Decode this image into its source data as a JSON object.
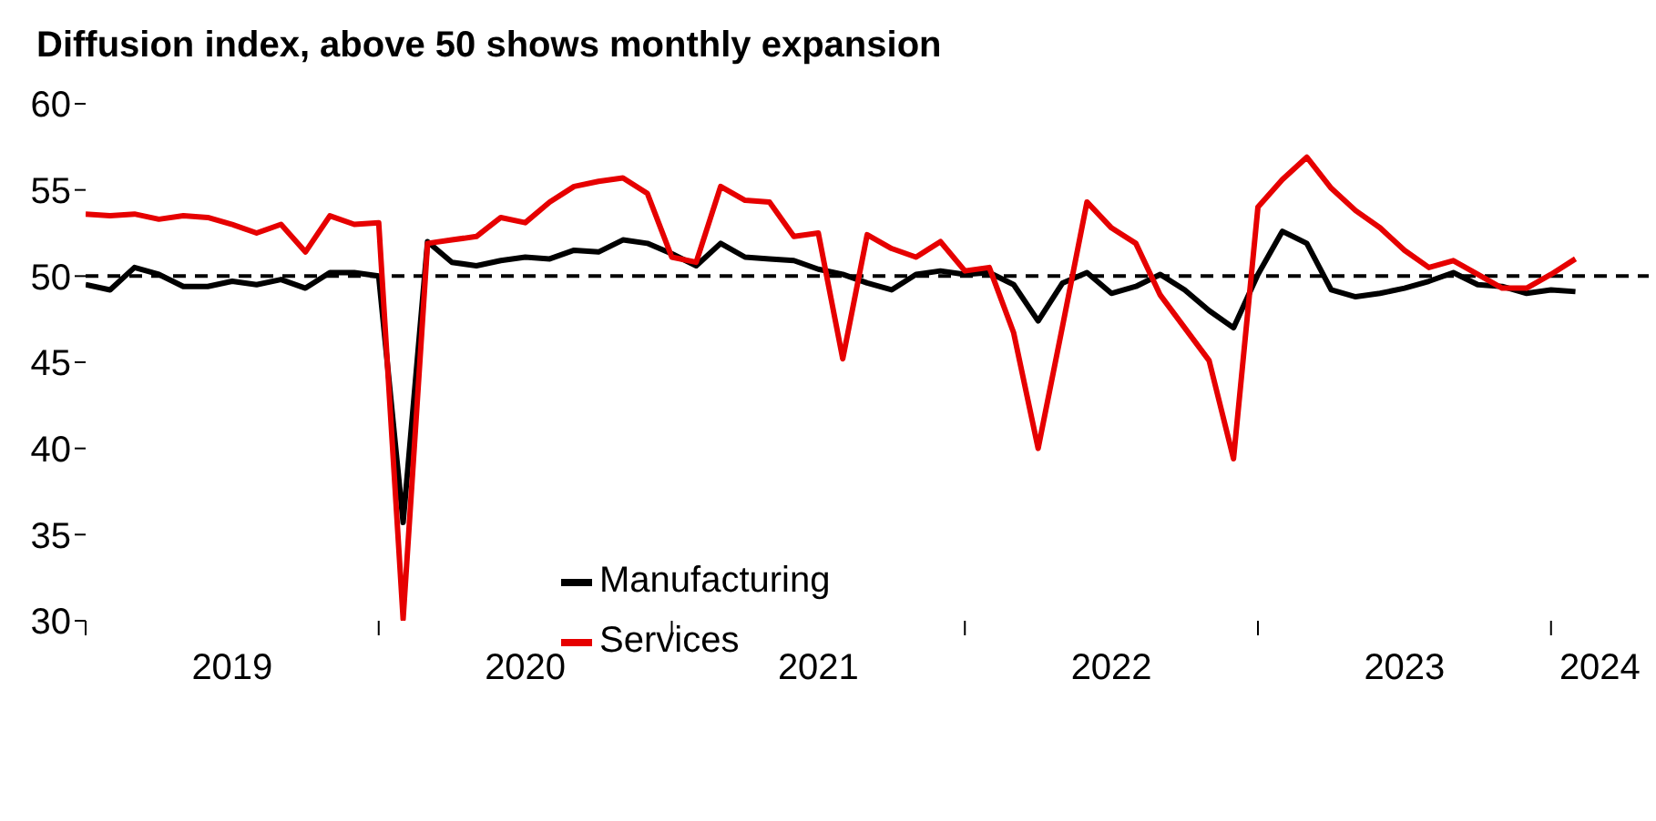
{
  "chart_data": {
    "type": "line",
    "title": "Diffusion index, above 50 shows monthly expansion",
    "x": [
      "2019-01",
      "2019-02",
      "2019-03",
      "2019-04",
      "2019-05",
      "2019-06",
      "2019-07",
      "2019-08",
      "2019-09",
      "2019-10",
      "2019-11",
      "2019-12",
      "2020-01",
      "2020-02",
      "2020-03",
      "2020-04",
      "2020-05",
      "2020-06",
      "2020-07",
      "2020-08",
      "2020-09",
      "2020-10",
      "2020-11",
      "2020-12",
      "2021-01",
      "2021-02",
      "2021-03",
      "2021-04",
      "2021-05",
      "2021-06",
      "2021-07",
      "2021-08",
      "2021-09",
      "2021-10",
      "2021-11",
      "2021-12",
      "2022-01",
      "2022-02",
      "2022-03",
      "2022-04",
      "2022-05",
      "2022-06",
      "2022-07",
      "2022-08",
      "2022-09",
      "2022-10",
      "2022-11",
      "2022-12",
      "2023-01",
      "2023-02",
      "2023-03",
      "2023-04",
      "2023-05",
      "2023-06",
      "2023-07",
      "2023-08",
      "2023-09",
      "2023-10",
      "2023-11",
      "2023-12",
      "2024-01",
      "2024-02"
    ],
    "series": [
      {
        "name": "Manufacturing",
        "color": "#000000",
        "values": [
          49.5,
          49.2,
          50.5,
          50.1,
          49.4,
          49.4,
          49.7,
          49.5,
          49.8,
          49.3,
          50.2,
          50.2,
          50.0,
          35.7,
          52.0,
          50.8,
          50.6,
          50.9,
          51.1,
          51.0,
          51.5,
          51.4,
          52.1,
          51.9,
          51.3,
          50.6,
          51.9,
          51.1,
          51.0,
          50.9,
          50.4,
          50.1,
          49.6,
          49.2,
          50.1,
          50.3,
          50.1,
          50.2,
          49.5,
          47.4,
          49.6,
          50.2,
          49.0,
          49.4,
          50.1,
          49.2,
          48.0,
          47.0,
          50.1,
          52.6,
          51.9,
          49.2,
          48.8,
          49.0,
          49.3,
          49.7,
          50.2,
          49.5,
          49.4,
          49.0,
          49.2,
          49.1
        ]
      },
      {
        "name": "Services",
        "color": "#e60000",
        "values": [
          53.6,
          53.5,
          53.6,
          53.3,
          53.5,
          53.4,
          53.0,
          52.5,
          53.0,
          51.4,
          53.5,
          53.0,
          53.1,
          30.1,
          51.9,
          52.1,
          52.3,
          53.4,
          53.1,
          54.3,
          55.2,
          55.5,
          55.7,
          54.8,
          51.1,
          50.8,
          55.2,
          54.4,
          54.3,
          52.3,
          52.5,
          45.2,
          52.4,
          51.6,
          51.1,
          52.0,
          50.3,
          50.5,
          46.7,
          40.0,
          47.1,
          54.3,
          52.8,
          51.9,
          48.9,
          47.0,
          45.1,
          39.4,
          54.0,
          55.6,
          56.9,
          55.1,
          53.8,
          52.8,
          51.5,
          50.5,
          50.9,
          50.1,
          49.3,
          49.3,
          50.1,
          51.0
        ]
      }
    ],
    "xlim": [
      "2019-01",
      "2024-05"
    ],
    "xticks": [
      {
        "value": "2019-01",
        "label": null
      },
      {
        "value": "2019-07",
        "label": "2019"
      },
      {
        "value": "2020-01",
        "label": null
      },
      {
        "value": "2020-07",
        "label": "2020"
      },
      {
        "value": "2021-01",
        "label": null
      },
      {
        "value": "2021-07",
        "label": "2021"
      },
      {
        "value": "2022-01",
        "label": null
      },
      {
        "value": "2022-07",
        "label": "2022"
      },
      {
        "value": "2023-01",
        "label": null
      },
      {
        "value": "2023-07",
        "label": "2023"
      },
      {
        "value": "2024-01",
        "label": null
      },
      {
        "value": "2024-03",
        "label": "2024"
      }
    ],
    "ylim": [
      30,
      60
    ],
    "yticks": [
      30,
      35,
      40,
      45,
      50,
      55,
      60
    ],
    "ref_lines": [
      {
        "axis": "y",
        "value": 50,
        "color": "#000000",
        "line_style": "dashed"
      }
    ],
    "legend": "bottom left",
    "marker": "none",
    "line_style": "solid"
  }
}
